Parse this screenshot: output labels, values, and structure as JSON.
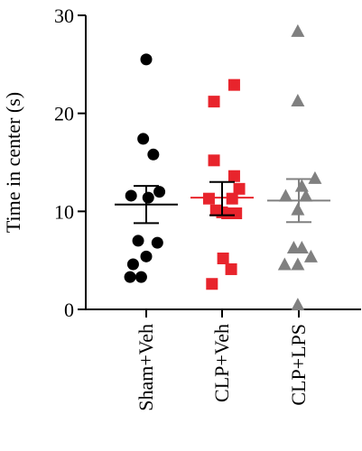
{
  "chart_data": {
    "type": "scatter",
    "title": "",
    "ylabel": "Time in center (s)",
    "xlabel": "",
    "ylim": [
      0,
      30
    ],
    "yticks": [
      0,
      10,
      20,
      30
    ],
    "grid": false,
    "categories": [
      "Sham+Veh",
      "CLP+Veh",
      "CLP+LPS"
    ],
    "series": [
      {
        "category": "Sham+Veh",
        "marker": "circle",
        "color": "#000000",
        "mean": 10.7,
        "sem_low": 8.8,
        "sem_high": 12.6,
        "points": [
          {
            "offset": -0.32,
            "value": 3.3
          },
          {
            "offset": -0.1,
            "value": 3.3
          },
          {
            "offset": -0.26,
            "value": 4.6
          },
          {
            "offset": 0.0,
            "value": 5.4
          },
          {
            "offset": -0.16,
            "value": 7.0
          },
          {
            "offset": 0.22,
            "value": 6.8
          },
          {
            "offset": -0.3,
            "value": 11.6
          },
          {
            "offset": 0.04,
            "value": 11.4
          },
          {
            "offset": 0.26,
            "value": 12.0
          },
          {
            "offset": 0.14,
            "value": 15.8
          },
          {
            "offset": -0.06,
            "value": 17.4
          },
          {
            "offset": 0.0,
            "value": 25.5
          }
        ]
      },
      {
        "category": "CLP+Veh",
        "marker": "square",
        "color": "#e8242c",
        "mean": 11.4,
        "sem_low": 9.6,
        "sem_high": 13.0,
        "points": [
          {
            "offset": -0.2,
            "value": 2.6
          },
          {
            "offset": 0.18,
            "value": 4.1
          },
          {
            "offset": 0.02,
            "value": 5.2
          },
          {
            "offset": 0.28,
            "value": 9.8
          },
          {
            "offset": -0.12,
            "value": 10.1
          },
          {
            "offset": 0.0,
            "value": 9.9
          },
          {
            "offset": 0.1,
            "value": 9.8
          },
          {
            "offset": -0.26,
            "value": 11.3
          },
          {
            "offset": 0.2,
            "value": 11.3
          },
          {
            "offset": 0.34,
            "value": 12.3
          },
          {
            "offset": 0.24,
            "value": 13.6
          },
          {
            "offset": -0.16,
            "value": 15.2
          },
          {
            "offset": -0.16,
            "value": 21.2
          },
          {
            "offset": 0.24,
            "value": 22.9
          }
        ]
      },
      {
        "category": "CLP+LPS",
        "marker": "triangle",
        "color": "#808080",
        "mean": 11.1,
        "sem_low": 8.9,
        "sem_high": 13.3,
        "points": [
          {
            "offset": -0.02,
            "value": 0.5
          },
          {
            "offset": -0.28,
            "value": 4.6
          },
          {
            "offset": -0.02,
            "value": 4.6
          },
          {
            "offset": 0.24,
            "value": 5.4
          },
          {
            "offset": -0.1,
            "value": 6.3
          },
          {
            "offset": 0.06,
            "value": 6.3
          },
          {
            "offset": -0.02,
            "value": 10.2
          },
          {
            "offset": -0.26,
            "value": 11.6
          },
          {
            "offset": 0.14,
            "value": 11.6
          },
          {
            "offset": 0.06,
            "value": 12.6
          },
          {
            "offset": 0.32,
            "value": 13.4
          },
          {
            "offset": -0.02,
            "value": 21.3
          },
          {
            "offset": -0.02,
            "value": 28.4
          }
        ]
      }
    ]
  }
}
